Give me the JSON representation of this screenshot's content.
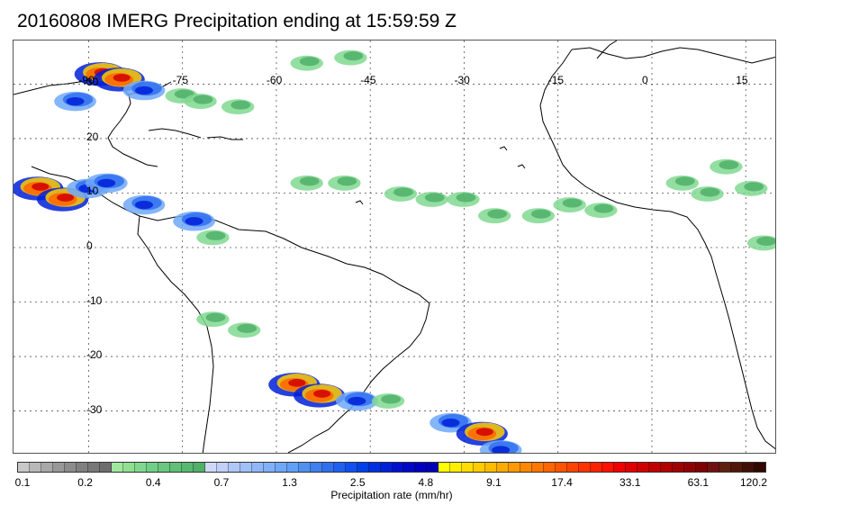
{
  "title": "20160808 IMERG Precipitation ending at 15:59:59 Z",
  "map": {
    "lon_range": [
      -102,
      20
    ],
    "lat_range": [
      -38,
      38
    ],
    "lon_ticks": [
      "-90",
      "-75",
      "-60",
      "-45",
      "-30",
      "-15",
      "0",
      "15"
    ],
    "lon_tick_values": [
      -90,
      -75,
      -60,
      -45,
      -30,
      -15,
      0,
      15
    ],
    "lat_ticks": [
      "30",
      "20",
      "10",
      "0",
      "-10",
      "-20",
      "-30"
    ],
    "lat_tick_values": [
      30,
      20,
      10,
      0,
      -10,
      -20,
      -30
    ],
    "grid": "dotted"
  },
  "colorbar": {
    "label": "Precipitation rate (mm/hr)",
    "ticks": [
      "0.1",
      "0.2",
      "0.4",
      "0.7",
      "1.3",
      "2.5",
      "4.8",
      "9.1",
      "17.4",
      "33.1",
      "63.1",
      "120.2"
    ],
    "colors": [
      "#c8c8c8",
      "#b8b8b8",
      "#a8a8a8",
      "#989898",
      "#8c8c8c",
      "#808080",
      "#787878",
      "#6e6e6e",
      "#a0e8a0",
      "#90e090",
      "#80d890",
      "#70d088",
      "#68c880",
      "#60c078",
      "#58b870",
      "#50b068",
      "#d0d8f8",
      "#c0d0f8",
      "#b0c8f8",
      "#a0c0f8",
      "#90b8f8",
      "#80b0f8",
      "#70a8f8",
      "#60a0f8",
      "#5090f0",
      "#4080f0",
      "#3070f0",
      "#2060f0",
      "#1050f0",
      "#0040e8",
      "#0030e0",
      "#0020d8",
      "#0010d0",
      "#0008c8",
      "#0000c0",
      "#0000b8",
      "#ffff00",
      "#ffee00",
      "#ffdd00",
      "#ffcc00",
      "#ffbb00",
      "#ffaa00",
      "#ff9900",
      "#ff8800",
      "#ff7700",
      "#ff6600",
      "#ff5500",
      "#ff4400",
      "#ff3300",
      "#ff2200",
      "#ff1100",
      "#f00000",
      "#e00000",
      "#d00000",
      "#c00000",
      "#b00000",
      "#a00000",
      "#900000",
      "#800000",
      "#701010",
      "#602010",
      "#501808",
      "#401008",
      "#300800"
    ]
  },
  "precip_cells": [
    {
      "lon": -88,
      "lat": 32,
      "intensity": 3
    },
    {
      "lon": -85,
      "lat": 31,
      "intensity": 3
    },
    {
      "lon": -81,
      "lat": 29,
      "intensity": 2
    },
    {
      "lon": -92,
      "lat": 27,
      "intensity": 2
    },
    {
      "lon": -75,
      "lat": 28,
      "intensity": 1
    },
    {
      "lon": -72,
      "lat": 27,
      "intensity": 1
    },
    {
      "lon": -66,
      "lat": 26,
      "intensity": 1
    },
    {
      "lon": -55,
      "lat": 34,
      "intensity": 1
    },
    {
      "lon": -48,
      "lat": 35,
      "intensity": 1
    },
    {
      "lon": -98,
      "lat": 11,
      "intensity": 3
    },
    {
      "lon": -94,
      "lat": 9,
      "intensity": 3
    },
    {
      "lon": -90,
      "lat": 11,
      "intensity": 2
    },
    {
      "lon": -87,
      "lat": 12,
      "intensity": 2
    },
    {
      "lon": -81,
      "lat": 8,
      "intensity": 2
    },
    {
      "lon": -73,
      "lat": 5,
      "intensity": 2
    },
    {
      "lon": -70,
      "lat": 2,
      "intensity": 1
    },
    {
      "lon": -55,
      "lat": 12,
      "intensity": 1
    },
    {
      "lon": -49,
      "lat": 12,
      "intensity": 1
    },
    {
      "lon": -40,
      "lat": 10,
      "intensity": 1
    },
    {
      "lon": -35,
      "lat": 9,
      "intensity": 1
    },
    {
      "lon": -30,
      "lat": 9,
      "intensity": 1
    },
    {
      "lon": -25,
      "lat": 6,
      "intensity": 1
    },
    {
      "lon": -18,
      "lat": 6,
      "intensity": 1
    },
    {
      "lon": -13,
      "lat": 8,
      "intensity": 1
    },
    {
      "lon": -8,
      "lat": 7,
      "intensity": 1
    },
    {
      "lon": 5,
      "lat": 12,
      "intensity": 1
    },
    {
      "lon": 9,
      "lat": 10,
      "intensity": 1
    },
    {
      "lon": 12,
      "lat": 15,
      "intensity": 1
    },
    {
      "lon": 16,
      "lat": 11,
      "intensity": 1
    },
    {
      "lon": 18,
      "lat": 1,
      "intensity": 1
    },
    {
      "lon": -57,
      "lat": -25,
      "intensity": 3
    },
    {
      "lon": -53,
      "lat": -27,
      "intensity": 3
    },
    {
      "lon": -47,
      "lat": -28,
      "intensity": 2
    },
    {
      "lon": -42,
      "lat": -28,
      "intensity": 1
    },
    {
      "lon": -32,
      "lat": -32,
      "intensity": 2
    },
    {
      "lon": -27,
      "lat": -34,
      "intensity": 3
    },
    {
      "lon": -24,
      "lat": -37,
      "intensity": 2
    },
    {
      "lon": -70,
      "lat": -13,
      "intensity": 1
    },
    {
      "lon": -65,
      "lat": -15,
      "intensity": 1
    }
  ]
}
